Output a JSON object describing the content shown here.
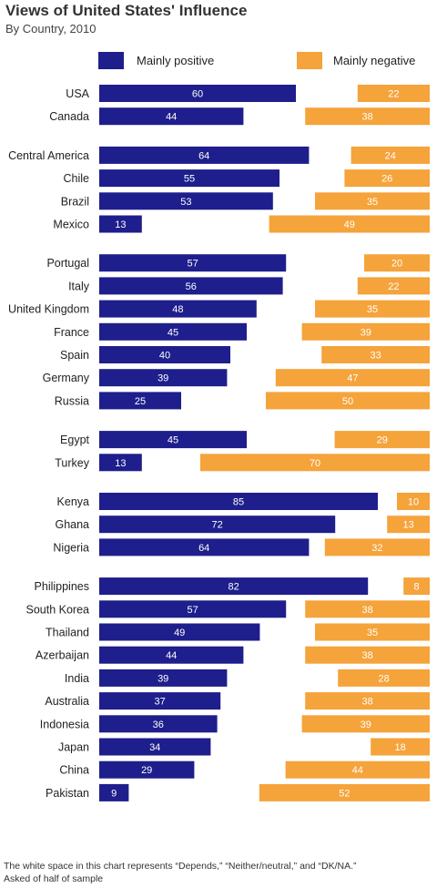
{
  "chart_data": {
    "type": "bar",
    "title": "Views of United States' Influence",
    "subtitle": "By Country, 2010",
    "legend": [
      "Mainly positive",
      "Mainly negative"
    ],
    "colors": {
      "positive": "#1e1e8c",
      "negative": "#f5a33b"
    },
    "groups": [
      {
        "rows": [
          {
            "country": "USA",
            "positive": 60,
            "negative": 22
          },
          {
            "country": "Canada",
            "positive": 44,
            "negative": 38
          }
        ]
      },
      {
        "rows": [
          {
            "country": "Central America",
            "positive": 64,
            "negative": 24
          },
          {
            "country": "Chile",
            "positive": 55,
            "negative": 26
          },
          {
            "country": "Brazil",
            "positive": 53,
            "negative": 35
          },
          {
            "country": "Mexico",
            "positive": 13,
            "negative": 49
          }
        ]
      },
      {
        "rows": [
          {
            "country": "Portugal",
            "positive": 57,
            "negative": 20
          },
          {
            "country": "Italy",
            "positive": 56,
            "negative": 22
          },
          {
            "country": "United Kingdom",
            "positive": 48,
            "negative": 35
          },
          {
            "country": "France",
            "positive": 45,
            "negative": 39
          },
          {
            "country": "Spain",
            "positive": 40,
            "negative": 33
          },
          {
            "country": "Germany",
            "positive": 39,
            "negative": 47
          },
          {
            "country": "Russia",
            "positive": 25,
            "negative": 50
          }
        ]
      },
      {
        "rows": [
          {
            "country": "Egypt",
            "positive": 45,
            "negative": 29
          },
          {
            "country": "Turkey",
            "positive": 13,
            "negative": 70
          }
        ]
      },
      {
        "rows": [
          {
            "country": "Kenya",
            "positive": 85,
            "negative": 10
          },
          {
            "country": "Ghana",
            "positive": 72,
            "negative": 13
          },
          {
            "country": "Nigeria",
            "positive": 64,
            "negative": 32
          }
        ]
      },
      {
        "rows": [
          {
            "country": "Philippines",
            "positive": 82,
            "negative": 8
          },
          {
            "country": "South Korea",
            "positive": 57,
            "negative": 38
          },
          {
            "country": "Thailand",
            "positive": 49,
            "negative": 35
          },
          {
            "country": "Azerbaijan",
            "positive": 44,
            "negative": 38
          },
          {
            "country": "India",
            "positive": 39,
            "negative": 28
          },
          {
            "country": "Australia",
            "positive": 37,
            "negative": 38
          },
          {
            "country": "Indonesia",
            "positive": 36,
            "negative": 39
          },
          {
            "country": "Japan",
            "positive": 34,
            "negative": 18
          },
          {
            "country": "China",
            "positive": 29,
            "negative": 44
          },
          {
            "country": "Pakistan",
            "positive": 9,
            "negative": 52
          }
        ]
      }
    ],
    "footnotes": [
      "The white space in this chart represents “Depends,” “Neither/neutral,” and “DK/NA.”",
      "Asked of half of sample"
    ]
  }
}
